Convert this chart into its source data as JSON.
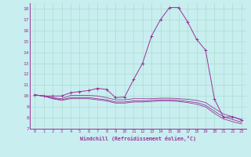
{
  "xlabel": "Windchill (Refroidissement éolien,°C)",
  "xlim": [
    -0.5,
    23.5
  ],
  "ylim": [
    7,
    18.5
  ],
  "yticks": [
    7,
    8,
    9,
    10,
    11,
    12,
    13,
    14,
    15,
    16,
    17,
    18
  ],
  "xticks": [
    0,
    1,
    2,
    3,
    4,
    5,
    6,
    7,
    8,
    9,
    10,
    11,
    12,
    13,
    14,
    15,
    16,
    17,
    18,
    19,
    20,
    21,
    22,
    23
  ],
  "bg_color": "#c8eef0",
  "line_color": "#993399",
  "grid_color": "#aaddcc",
  "series0": [
    10.1,
    10.0,
    10.0,
    10.0,
    10.3,
    10.4,
    10.5,
    10.7,
    10.6,
    9.85,
    9.9,
    11.5,
    13.0,
    15.5,
    17.0,
    18.1,
    18.1,
    16.8,
    15.2,
    14.2,
    9.7,
    8.05,
    8.1,
    7.8
  ],
  "series1": [
    10.1,
    10.0,
    9.85,
    9.75,
    10.05,
    10.05,
    10.05,
    10.0,
    9.85,
    9.65,
    9.65,
    9.75,
    9.75,
    9.75,
    9.8,
    9.8,
    9.75,
    9.7,
    9.6,
    9.4,
    8.85,
    8.35,
    8.1,
    7.85
  ],
  "series2": [
    10.1,
    10.0,
    9.8,
    9.65,
    9.85,
    9.85,
    9.85,
    9.75,
    9.65,
    9.45,
    9.45,
    9.55,
    9.55,
    9.6,
    9.65,
    9.65,
    9.6,
    9.5,
    9.4,
    9.15,
    8.6,
    8.1,
    7.85,
    7.6
  ],
  "series3": [
    10.1,
    10.0,
    9.75,
    9.6,
    9.75,
    9.75,
    9.75,
    9.65,
    9.55,
    9.35,
    9.35,
    9.45,
    9.45,
    9.5,
    9.55,
    9.55,
    9.5,
    9.4,
    9.25,
    9.0,
    8.4,
    7.9,
    7.65,
    7.45
  ]
}
